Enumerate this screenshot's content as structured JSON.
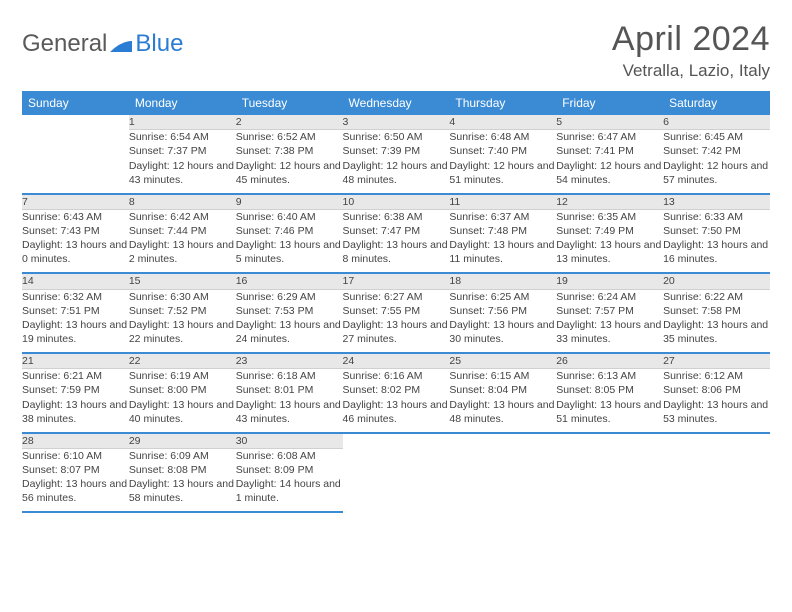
{
  "logo": {
    "part1": "General",
    "part2": "Blue"
  },
  "title": "April 2024",
  "location": "Vetralla, Lazio, Italy",
  "columns": [
    "Sunday",
    "Monday",
    "Tuesday",
    "Wednesday",
    "Thursday",
    "Friday",
    "Saturday"
  ],
  "colors": {
    "header_bg": "#3b8bd4",
    "daynum_bg": "#e8e8e8"
  },
  "weeks": [
    [
      null,
      {
        "n": "1",
        "sr": "6:54 AM",
        "ss": "7:37 PM",
        "dl": "12 hours and 43 minutes."
      },
      {
        "n": "2",
        "sr": "6:52 AM",
        "ss": "7:38 PM",
        "dl": "12 hours and 45 minutes."
      },
      {
        "n": "3",
        "sr": "6:50 AM",
        "ss": "7:39 PM",
        "dl": "12 hours and 48 minutes."
      },
      {
        "n": "4",
        "sr": "6:48 AM",
        "ss": "7:40 PM",
        "dl": "12 hours and 51 minutes."
      },
      {
        "n": "5",
        "sr": "6:47 AM",
        "ss": "7:41 PM",
        "dl": "12 hours and 54 minutes."
      },
      {
        "n": "6",
        "sr": "6:45 AM",
        "ss": "7:42 PM",
        "dl": "12 hours and 57 minutes."
      }
    ],
    [
      {
        "n": "7",
        "sr": "6:43 AM",
        "ss": "7:43 PM",
        "dl": "13 hours and 0 minutes."
      },
      {
        "n": "8",
        "sr": "6:42 AM",
        "ss": "7:44 PM",
        "dl": "13 hours and 2 minutes."
      },
      {
        "n": "9",
        "sr": "6:40 AM",
        "ss": "7:46 PM",
        "dl": "13 hours and 5 minutes."
      },
      {
        "n": "10",
        "sr": "6:38 AM",
        "ss": "7:47 PM",
        "dl": "13 hours and 8 minutes."
      },
      {
        "n": "11",
        "sr": "6:37 AM",
        "ss": "7:48 PM",
        "dl": "13 hours and 11 minutes."
      },
      {
        "n": "12",
        "sr": "6:35 AM",
        "ss": "7:49 PM",
        "dl": "13 hours and 13 minutes."
      },
      {
        "n": "13",
        "sr": "6:33 AM",
        "ss": "7:50 PM",
        "dl": "13 hours and 16 minutes."
      }
    ],
    [
      {
        "n": "14",
        "sr": "6:32 AM",
        "ss": "7:51 PM",
        "dl": "13 hours and 19 minutes."
      },
      {
        "n": "15",
        "sr": "6:30 AM",
        "ss": "7:52 PM",
        "dl": "13 hours and 22 minutes."
      },
      {
        "n": "16",
        "sr": "6:29 AM",
        "ss": "7:53 PM",
        "dl": "13 hours and 24 minutes."
      },
      {
        "n": "17",
        "sr": "6:27 AM",
        "ss": "7:55 PM",
        "dl": "13 hours and 27 minutes."
      },
      {
        "n": "18",
        "sr": "6:25 AM",
        "ss": "7:56 PM",
        "dl": "13 hours and 30 minutes."
      },
      {
        "n": "19",
        "sr": "6:24 AM",
        "ss": "7:57 PM",
        "dl": "13 hours and 33 minutes."
      },
      {
        "n": "20",
        "sr": "6:22 AM",
        "ss": "7:58 PM",
        "dl": "13 hours and 35 minutes."
      }
    ],
    [
      {
        "n": "21",
        "sr": "6:21 AM",
        "ss": "7:59 PM",
        "dl": "13 hours and 38 minutes."
      },
      {
        "n": "22",
        "sr": "6:19 AM",
        "ss": "8:00 PM",
        "dl": "13 hours and 40 minutes."
      },
      {
        "n": "23",
        "sr": "6:18 AM",
        "ss": "8:01 PM",
        "dl": "13 hours and 43 minutes."
      },
      {
        "n": "24",
        "sr": "6:16 AM",
        "ss": "8:02 PM",
        "dl": "13 hours and 46 minutes."
      },
      {
        "n": "25",
        "sr": "6:15 AM",
        "ss": "8:04 PM",
        "dl": "13 hours and 48 minutes."
      },
      {
        "n": "26",
        "sr": "6:13 AM",
        "ss": "8:05 PM",
        "dl": "13 hours and 51 minutes."
      },
      {
        "n": "27",
        "sr": "6:12 AM",
        "ss": "8:06 PM",
        "dl": "13 hours and 53 minutes."
      }
    ],
    [
      {
        "n": "28",
        "sr": "6:10 AM",
        "ss": "8:07 PM",
        "dl": "13 hours and 56 minutes."
      },
      {
        "n": "29",
        "sr": "6:09 AM",
        "ss": "8:08 PM",
        "dl": "13 hours and 58 minutes."
      },
      {
        "n": "30",
        "sr": "6:08 AM",
        "ss": "8:09 PM",
        "dl": "14 hours and 1 minute."
      },
      null,
      null,
      null,
      null
    ]
  ],
  "labels": {
    "sunrise": "Sunrise:",
    "sunset": "Sunset:",
    "daylight": "Daylight:"
  }
}
